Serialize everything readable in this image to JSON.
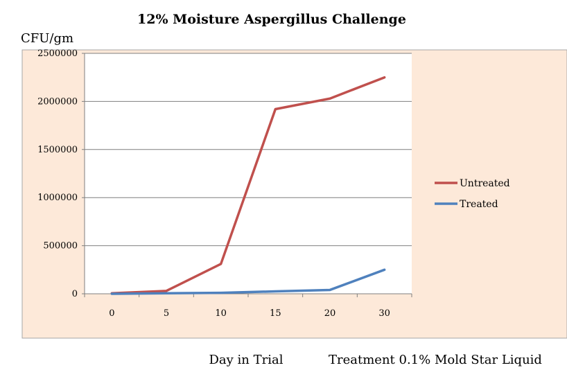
{
  "chart_data": {
    "type": "line",
    "title": "12% Moisture Aspergillus Challenge",
    "ylabel": "CFU/gm",
    "xlabel": "Day in Trial",
    "note": "Treatment 0.1% Mold Star Liquid",
    "categories": [
      "0",
      "5",
      "10",
      "15",
      "20",
      "30"
    ],
    "ylim": [
      0,
      2500000
    ],
    "yticks": [
      0,
      500000,
      1000000,
      1500000,
      2000000,
      2500000
    ],
    "grid": true,
    "legend": "right",
    "series": [
      {
        "name": "Untreated",
        "color": "#c0504d",
        "values": [
          5000,
          30000,
          310000,
          1920000,
          2030000,
          2250000
        ]
      },
      {
        "name": "Treated",
        "color": "#4f81bd",
        "values": [
          0,
          5000,
          10000,
          25000,
          40000,
          250000
        ]
      }
    ],
    "colors": {
      "background": "#fde9d9",
      "plot": "#ffffff",
      "grid": "#7f7f7f"
    }
  }
}
